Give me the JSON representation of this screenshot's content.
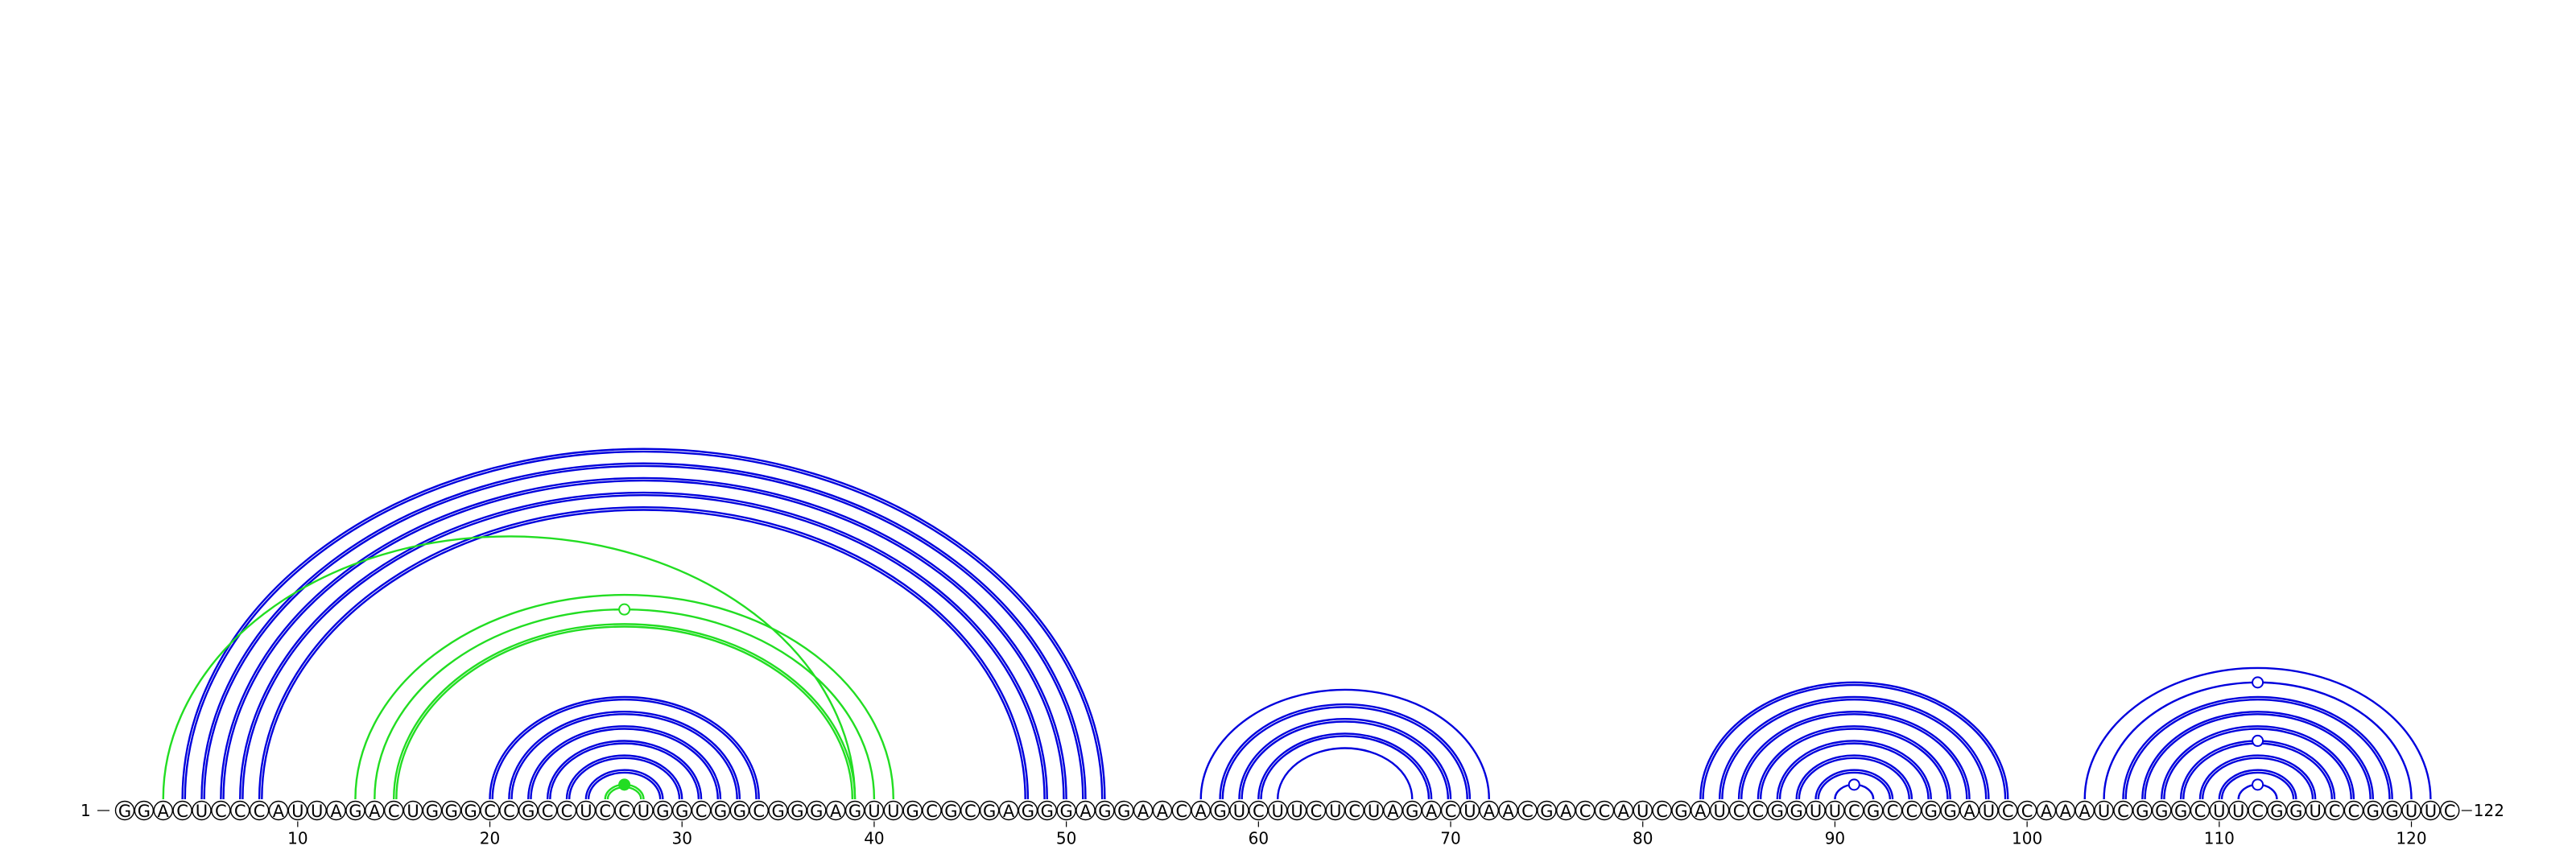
{
  "sequence": "GGACUCCCAUUAGACUGGGCCGCCUCCUGGCGGCGGGAGUUGCGCGAGGGAGGAACAGUCUUCUCUAGACUAACGACCAUCGAUCCGGUUCGCCGGAUCCAAAUCGGGCUUCGGUCCGGUUC",
  "start_label": "1",
  "end_label": "122",
  "ticks": [
    10,
    20,
    30,
    40,
    50,
    60,
    70,
    80,
    90,
    100,
    110,
    120
  ],
  "colors": {
    "blue": "#0000dd",
    "green": "#22dd22",
    "outline": "#000000"
  },
  "arcs": [
    {
      "i": 4,
      "j": 52,
      "color": "blue",
      "double": true
    },
    {
      "i": 5,
      "j": 51,
      "color": "blue",
      "double": true
    },
    {
      "i": 6,
      "j": 50,
      "color": "blue",
      "double": true
    },
    {
      "i": 7,
      "j": 49,
      "color": "blue",
      "double": true
    },
    {
      "i": 8,
      "j": 48,
      "color": "blue",
      "double": true
    },
    {
      "i": 3,
      "j": 39,
      "color": "green",
      "double": false
    },
    {
      "i": 13,
      "j": 41,
      "color": "green",
      "double": false
    },
    {
      "i": 14,
      "j": 40,
      "color": "green",
      "double": false
    },
    {
      "i": 15,
      "j": 39,
      "color": "green",
      "double": true
    },
    {
      "i": 20,
      "j": 34,
      "color": "blue",
      "double": true
    },
    {
      "i": 21,
      "j": 33,
      "color": "blue",
      "double": true
    },
    {
      "i": 22,
      "j": 32,
      "color": "blue",
      "double": true
    },
    {
      "i": 23,
      "j": 31,
      "color": "blue",
      "double": true
    },
    {
      "i": 24,
      "j": 30,
      "color": "blue",
      "double": true
    },
    {
      "i": 25,
      "j": 29,
      "color": "blue",
      "double": true
    },
    {
      "i": 26,
      "j": 28,
      "color": "green",
      "double": true
    },
    {
      "i": 57,
      "j": 72,
      "color": "blue",
      "double": false
    },
    {
      "i": 58,
      "j": 71,
      "color": "blue",
      "double": true
    },
    {
      "i": 59,
      "j": 70,
      "color": "blue",
      "double": true
    },
    {
      "i": 60,
      "j": 69,
      "color": "blue",
      "double": true
    },
    {
      "i": 61,
      "j": 68,
      "color": "blue",
      "double": false
    },
    {
      "i": 83,
      "j": 99,
      "color": "blue",
      "double": true
    },
    {
      "i": 84,
      "j": 98,
      "color": "blue",
      "double": true
    },
    {
      "i": 85,
      "j": 97,
      "color": "blue",
      "double": true
    },
    {
      "i": 86,
      "j": 96,
      "color": "blue",
      "double": true
    },
    {
      "i": 87,
      "j": 95,
      "color": "blue",
      "double": true
    },
    {
      "i": 88,
      "j": 94,
      "color": "blue",
      "double": true
    },
    {
      "i": 89,
      "j": 93,
      "color": "blue",
      "double": true
    },
    {
      "i": 90,
      "j": 92,
      "color": "blue",
      "double": false
    },
    {
      "i": 103,
      "j": 121,
      "color": "blue",
      "double": false
    },
    {
      "i": 104,
      "j": 120,
      "color": "blue",
      "double": false
    },
    {
      "i": 105,
      "j": 119,
      "color": "blue",
      "double": true
    },
    {
      "i": 106,
      "j": 118,
      "color": "blue",
      "double": true
    },
    {
      "i": 107,
      "j": 117,
      "color": "blue",
      "double": true
    },
    {
      "i": 108,
      "j": 116,
      "color": "blue",
      "double": true
    },
    {
      "i": 109,
      "j": 115,
      "color": "blue",
      "double": true
    },
    {
      "i": 110,
      "j": 114,
      "color": "blue",
      "double": true
    },
    {
      "i": 111,
      "j": 113,
      "color": "blue",
      "double": false
    }
  ],
  "markers": [
    {
      "arc": 7,
      "color": "green",
      "filled": false
    },
    {
      "arc": 15,
      "color": "green",
      "filled": true
    },
    {
      "arc": 28,
      "color": "blue",
      "filled": false
    },
    {
      "arc": 30,
      "color": "blue",
      "filled": false
    },
    {
      "arc": 34,
      "color": "blue",
      "filled": false
    },
    {
      "arc": 37,
      "color": "blue",
      "filled": false
    }
  ]
}
